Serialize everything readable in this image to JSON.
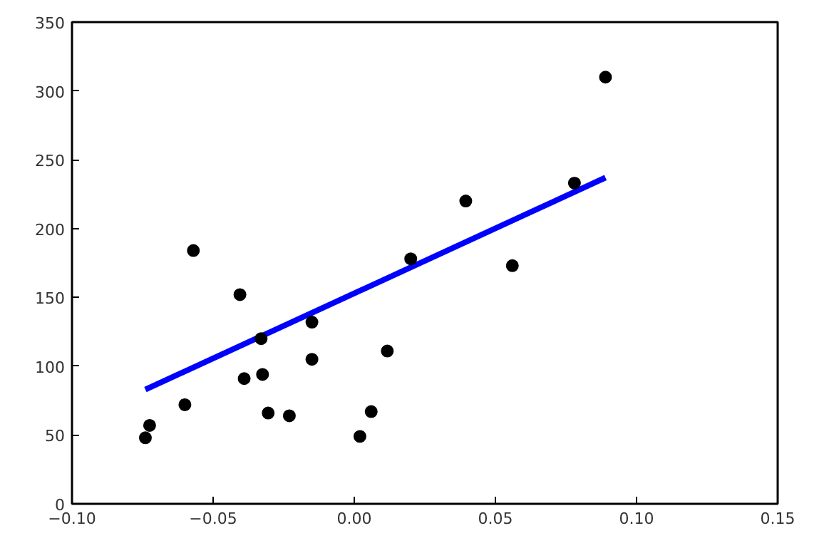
{
  "chart_data": {
    "type": "scatter",
    "xlim": [
      -0.1,
      0.15
    ],
    "xticks": [
      {
        "value": -0.1,
        "label": "−0.10"
      },
      {
        "value": -0.05,
        "label": "−0.05"
      },
      {
        "value": 0,
        "label": "0.00"
      },
      {
        "value": 0.05,
        "label": "0.05"
      },
      {
        "value": 0.1,
        "label": "0.10"
      },
      {
        "value": 0.15,
        "label": "0.15"
      }
    ],
    "ylim": [
      0,
      350
    ],
    "yticks": [
      0,
      50,
      100,
      150,
      200,
      250,
      300,
      350
    ],
    "grid": false,
    "series": [
      {
        "marker": "circle",
        "color": "#000000",
        "x": [
          -0.074,
          -0.0725,
          -0.06,
          -0.057,
          -0.0405,
          -0.033,
          -0.039,
          -0.0325,
          -0.0305,
          -0.023,
          -0.015,
          -0.015,
          0.002,
          0.006,
          0.0117,
          0.02,
          0.0395,
          0.056,
          0.078,
          0.089
        ],
        "values": [
          48,
          57,
          72,
          184,
          152,
          120,
          91,
          94,
          66,
          64,
          132,
          105,
          49,
          67,
          111,
          178,
          220,
          173,
          233,
          310
        ]
      },
      {
        "type": "line",
        "color": "#0000ff",
        "line_style": "solid",
        "x": [
          -0.074,
          0.089
        ],
        "values": [
          83,
          237
        ]
      }
    ]
  }
}
